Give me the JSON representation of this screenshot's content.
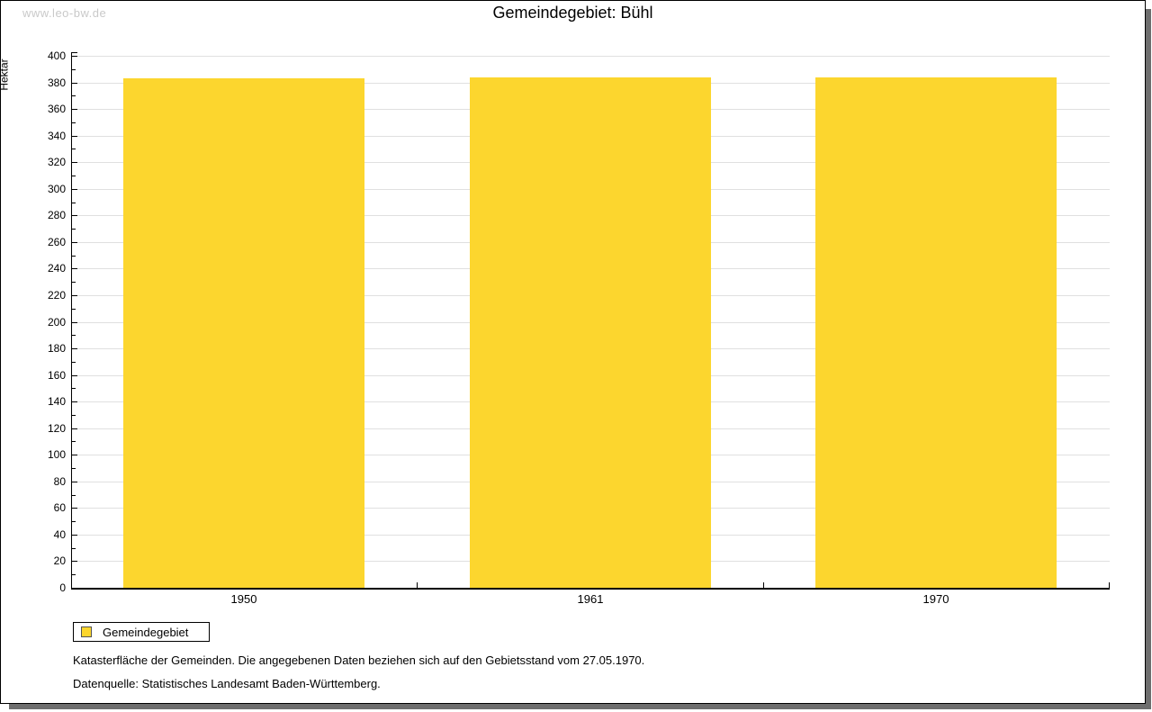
{
  "page": {
    "watermark": "www.leo-bw.de",
    "title": "Gemeindegebiet: Bühl"
  },
  "chart_data": {
    "type": "bar",
    "title": "Gemeindegebiet: Bühl",
    "categories": [
      "1950",
      "1961",
      "1970"
    ],
    "series": [
      {
        "name": "Gemeindegebiet",
        "values": [
          383,
          384,
          384
        ]
      }
    ],
    "xlabel": "",
    "ylabel": "Hektar",
    "ylim": [
      0,
      400
    ],
    "ytick_step": 20,
    "yminor_step": 10,
    "grid": true,
    "bar_color": "#fcd62e",
    "legend_position": "below-left"
  },
  "legend": {
    "label": "Gemeindegebiet",
    "swatch_color": "#fcd62e"
  },
  "footnotes": {
    "line1": "Katasterfläche der Gemeinden. Die angegebenen Daten beziehen sich auf den Gebietsstand vom 27.05.1970.",
    "line2": "Datenquelle: Statistisches Landesamt Baden-Württemberg."
  }
}
